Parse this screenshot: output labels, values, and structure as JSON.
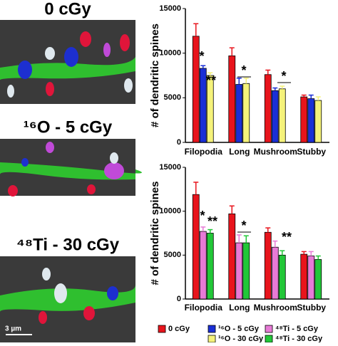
{
  "panels": [
    {
      "label": "0 cGy"
    },
    {
      "label": "¹⁶O - 5 cGy"
    },
    {
      "label": "⁴⁸Ti - 30 cGy"
    }
  ],
  "scale_bar": "3 µm",
  "chart_data": [
    {
      "type": "bar",
      "y_label": "# of dendritic spines",
      "categories": [
        "Filopodia",
        "Long",
        "Mushroom",
        "Stubby"
      ],
      "series": [
        {
          "name": "0 cGy",
          "color": "#e8141c",
          "values": [
            11900,
            9700,
            7600,
            5100
          ],
          "errors": [
            1400,
            900,
            500,
            200
          ]
        },
        {
          "name": "¹⁶O - 5 cGy",
          "color": "#1a2fd6",
          "values": [
            8300,
            6500,
            5800,
            4900
          ],
          "errors": [
            300,
            700,
            300,
            400
          ]
        },
        {
          "name": "¹⁶O - 30 cGy",
          "color": "#f5f27a",
          "values": [
            7500,
            6600,
            6000,
            4700
          ],
          "errors": [
            300,
            600,
            300,
            400
          ]
        }
      ],
      "ylim": [
        0,
        15000
      ],
      "yticks": [
        0,
        5000,
        10000,
        15000
      ],
      "annotations": [
        "*",
        "**",
        "*",
        "*"
      ]
    },
    {
      "type": "bar",
      "y_label": "# of dendritic spines",
      "categories": [
        "Filopodia",
        "Long",
        "Mushroom",
        "Stubby"
      ],
      "series": [
        {
          "name": "0 cGy",
          "color": "#e8141c",
          "values": [
            11900,
            9700,
            7600,
            5100
          ],
          "errors": [
            1400,
            900,
            500,
            300
          ]
        },
        {
          "name": "⁴⁸Ti - 5 cGy",
          "color": "#e77ad6",
          "values": [
            7700,
            6400,
            5900,
            4900
          ],
          "errors": [
            500,
            900,
            700,
            500
          ]
        },
        {
          "name": "⁴⁸Ti - 30 cGy",
          "color": "#22c738",
          "values": [
            7500,
            6400,
            5000,
            4500
          ],
          "errors": [
            400,
            800,
            500,
            400
          ]
        }
      ],
      "ylim": [
        0,
        15000
      ],
      "yticks": [
        0,
        5000,
        10000,
        15000
      ],
      "annotations": [
        "*",
        "**",
        "*",
        "**"
      ]
    }
  ]
}
